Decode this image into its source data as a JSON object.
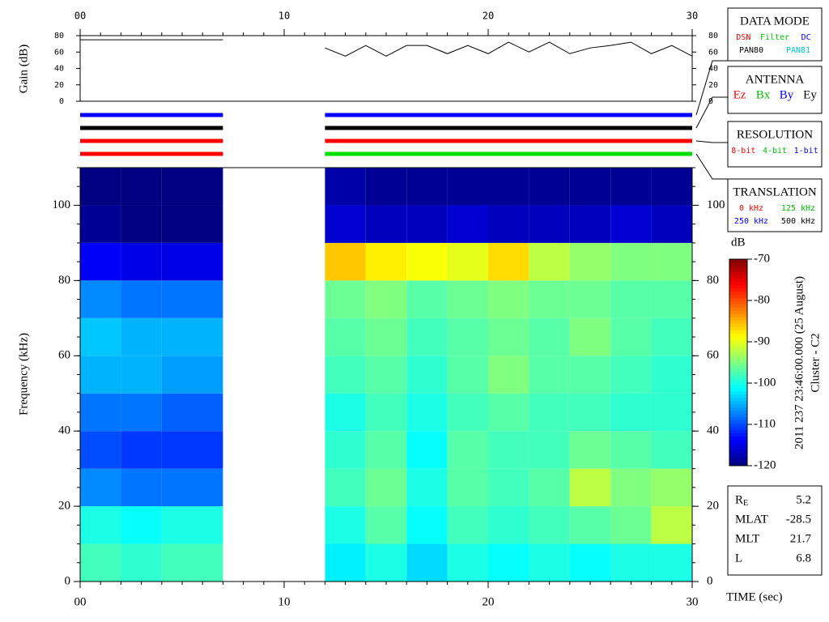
{
  "chart_data": [
    {
      "type": "line",
      "ylabel": "Gain (dB)",
      "color": "#000000",
      "x": [
        0,
        7,
        8,
        12,
        13,
        14,
        15,
        16,
        17,
        18,
        19,
        20,
        21,
        22,
        23,
        24,
        25,
        26,
        27,
        28,
        29,
        30
      ],
      "values": [
        75,
        75,
        null,
        65,
        55,
        68,
        55,
        68,
        68,
        58,
        68,
        58,
        72,
        60,
        72,
        58,
        65,
        68,
        72,
        58,
        68,
        55
      ],
      "xlim": [
        0,
        30
      ],
      "xticks": [
        {
          "value": 0,
          "label": "00"
        },
        {
          "value": 10,
          "label": "10"
        },
        {
          "value": 20,
          "label": "20"
        },
        {
          "value": 30,
          "label": "30"
        }
      ],
      "ylim": [
        0,
        80
      ],
      "yticks": [
        0,
        20,
        40,
        60,
        80
      ]
    },
    {
      "type": "heatmap",
      "ylabel": "Frequency (kHz)",
      "xlabel": "TIME (sec)",
      "colorbar_label": "dB",
      "x_bins": [
        0,
        2,
        4,
        7,
        12,
        14,
        16,
        18,
        20,
        22,
        24,
        26,
        28,
        30
      ],
      "y_bins": [
        0,
        10,
        20,
        30,
        40,
        50,
        60,
        70,
        80,
        90,
        100,
        110
      ],
      "z": [
        [
          -98,
          -100,
          -107,
          -110,
          -108,
          -105,
          -104,
          -107,
          -114,
          -119,
          -120
        ],
        [
          -99,
          -101,
          -108,
          -111,
          -108,
          -105,
          -105,
          -108,
          -115,
          -120,
          -120
        ],
        [
          -98,
          -100,
          -108,
          -111,
          -109,
          -106,
          -105,
          -108,
          -115,
          -120,
          -120
        ],
        null,
        [
          -102,
          -100,
          -98,
          -99,
          -100,
          -98,
          -97,
          -96,
          -86,
          -116,
          -118
        ],
        [
          -100,
          -97,
          -96,
          -97,
          -98,
          -97,
          -96,
          -95,
          -88,
          -117,
          -119
        ],
        [
          -103,
          -101,
          -100,
          -101,
          -100,
          -99,
          -98,
          -97,
          -89,
          -117,
          -119
        ],
        [
          -100,
          -98,
          -97,
          -97,
          -98,
          -97,
          -97,
          -96,
          -90,
          -116,
          -119
        ],
        [
          -101,
          -99,
          -98,
          -98,
          -97,
          -95,
          -96,
          -95,
          -87,
          -117,
          -119
        ],
        [
          -100,
          -98,
          -97,
          -98,
          -98,
          -97,
          -97,
          -96,
          -92,
          -117,
          -119
        ],
        [
          -101,
          -97,
          -92,
          -96,
          -98,
          -97,
          -95,
          -96,
          -94,
          -117,
          -119
        ],
        [
          -100,
          -96,
          -95,
          -97,
          -99,
          -98,
          -97,
          -97,
          -95,
          -116,
          -119
        ],
        [
          -100,
          -92,
          -94,
          -98,
          -99,
          -99,
          -98,
          -97,
          -95,
          -117,
          -119
        ]
      ],
      "xlim": [
        0,
        30
      ],
      "xticks": [
        {
          "value": 0,
          "label": "00"
        },
        {
          "value": 10,
          "label": "10"
        },
        {
          "value": 20,
          "label": "20"
        },
        {
          "value": 30,
          "label": "30"
        }
      ],
      "ylim": [
        0,
        110
      ],
      "yticks": [
        0,
        20,
        40,
        60,
        80,
        100
      ],
      "clim": [
        -120,
        -70
      ],
      "cticks": [
        -70,
        -80,
        -90,
        -100,
        -110,
        -120
      ]
    }
  ],
  "status_bars": {
    "segments": [
      [
        0,
        7
      ],
      [
        12,
        30
      ]
    ],
    "rows": [
      {
        "colors": [
          "#0000ff",
          "#0000ff"
        ]
      },
      {
        "colors": [
          "#000000",
          "#000000"
        ]
      },
      {
        "colors": [
          "#ff0000",
          "#ff0000"
        ]
      },
      {
        "colors": [
          "#ff0000",
          "#00e000"
        ]
      }
    ]
  },
  "mode_panels": [
    {
      "title": "DATA MODE",
      "rows": [
        [
          {
            "text": "DSN",
            "color": "#ff0000"
          },
          {
            "text": "Filter",
            "color": "#00c000"
          },
          {
            "text": "DC",
            "color": "#0000ff"
          }
        ],
        [
          {
            "text": "PAN80",
            "color": "#000000"
          },
          {
            "text": "PAN81",
            "color": "#00c8c8"
          }
        ]
      ]
    },
    {
      "title": "ANTENNA",
      "rows": [
        [
          {
            "text": "Ez",
            "color": "#ff0000"
          },
          {
            "text": "Bx",
            "color": "#00c000"
          },
          {
            "text": "By",
            "color": "#0000ff"
          },
          {
            "text": "Ey",
            "color": "#000000"
          }
        ]
      ]
    },
    {
      "title": "RESOLUTION",
      "rows": [
        [
          {
            "text": "8-bit",
            "color": "#ff0000"
          },
          {
            "text": "4-bit",
            "color": "#00c000"
          },
          {
            "text": "1-bit",
            "color": "#0000ff"
          }
        ]
      ]
    },
    {
      "title": "TRANSLATION",
      "rows": [
        [
          {
            "text": "0 kHz",
            "color": "#ff0000"
          },
          {
            "text": "125 kHz",
            "color": "#00c000"
          }
        ],
        [
          {
            "text": "250 kHz",
            "color": "#0000ff"
          },
          {
            "text": "500 kHz",
            "color": "#000000"
          }
        ]
      ]
    }
  ],
  "orbit": [
    {
      "label": "R",
      "sub": "E",
      "value": 5.2
    },
    {
      "label": "MLAT",
      "value": -28.5
    },
    {
      "label": "MLT",
      "value": 21.7
    },
    {
      "label": "L",
      "value": 6.8
    }
  ],
  "timestamp": "2011 237 23:46:00.000 (25 August)",
  "spacecraft": "Cluster - C2"
}
